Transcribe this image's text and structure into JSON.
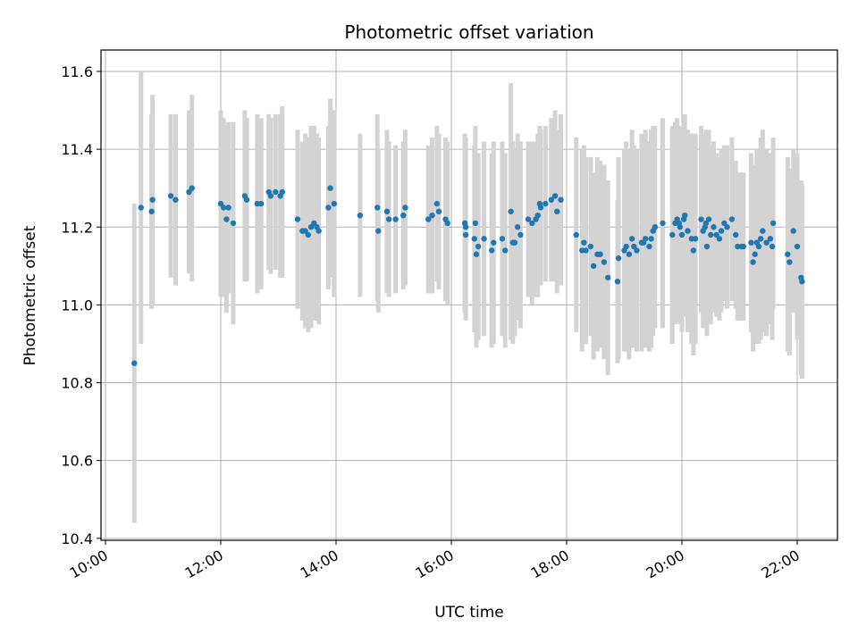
{
  "chart_data": {
    "type": "scatter",
    "title": "Photometric offset variation",
    "xlabel": "UTC time",
    "ylabel": "Photometric offset",
    "grid": true,
    "xlim": [
      "10:00",
      "22:40"
    ],
    "ylim": [
      10.395,
      11.655
    ],
    "x_ticks": [
      "10:00",
      "12:00",
      "14:00",
      "16:00",
      "18:00",
      "20:00",
      "22:00"
    ],
    "y_ticks": [
      "10.4",
      "10.6",
      "10.8",
      "11.0",
      "11.2",
      "11.4",
      "11.6"
    ],
    "colors": {
      "point": "#1f77b4",
      "errorbar": "#d3d3d3",
      "grid": "#b0b0b0"
    },
    "series": [
      {
        "points": [
          {
            "t": "10:30",
            "y": 10.85,
            "err": 0.41
          },
          {
            "t": "10:37",
            "y": 11.25,
            "err": 0.35
          },
          {
            "t": "10:48",
            "y": 11.24,
            "err": 0.25
          },
          {
            "t": "10:49",
            "y": 11.27,
            "err": 0.27
          },
          {
            "t": "11:08",
            "y": 11.28,
            "err": 0.21
          },
          {
            "t": "11:13",
            "y": 11.27,
            "err": 0.22
          },
          {
            "t": "11:27",
            "y": 11.29,
            "err": 0.21
          },
          {
            "t": "11:30",
            "y": 11.3,
            "err": 0.24
          },
          {
            "t": "12:00",
            "y": 11.26,
            "err": 0.24
          },
          {
            "t": "12:03",
            "y": 11.25,
            "err": 0.23
          },
          {
            "t": "12:06",
            "y": 11.22,
            "err": 0.24
          },
          {
            "t": "12:08",
            "y": 11.25,
            "err": 0.22
          },
          {
            "t": "12:13",
            "y": 11.21,
            "err": 0.26
          },
          {
            "t": "12:25",
            "y": 11.28,
            "err": 0.22
          },
          {
            "t": "12:27",
            "y": 11.27,
            "err": 0.21
          },
          {
            "t": "12:38",
            "y": 11.26,
            "err": 0.23
          },
          {
            "t": "12:42",
            "y": 11.26,
            "err": 0.22
          },
          {
            "t": "12:50",
            "y": 11.29,
            "err": 0.2
          },
          {
            "t": "12:52",
            "y": 11.28,
            "err": 0.2
          },
          {
            "t": "12:57",
            "y": 11.29,
            "err": 0.2
          },
          {
            "t": "13:02",
            "y": 11.28,
            "err": 0.21
          },
          {
            "t": "13:04",
            "y": 11.29,
            "err": 0.22
          },
          {
            "t": "13:20",
            "y": 11.22,
            "err": 0.23
          },
          {
            "t": "13:25",
            "y": 11.19,
            "err": 0.23
          },
          {
            "t": "13:28",
            "y": 11.19,
            "err": 0.25
          },
          {
            "t": "13:31",
            "y": 11.18,
            "err": 0.25
          },
          {
            "t": "13:34",
            "y": 11.2,
            "err": 0.26
          },
          {
            "t": "13:37",
            "y": 11.21,
            "err": 0.25
          },
          {
            "t": "13:40",
            "y": 11.2,
            "err": 0.24
          },
          {
            "t": "13:42",
            "y": 11.19,
            "err": 0.24
          },
          {
            "t": "13:52",
            "y": 11.25,
            "err": 0.21
          },
          {
            "t": "13:54",
            "y": 11.3,
            "err": 0.23
          },
          {
            "t": "13:58",
            "y": 11.26,
            "err": 0.24
          },
          {
            "t": "14:25",
            "y": 11.23,
            "err": 0.21
          },
          {
            "t": "14:43",
            "y": 11.25,
            "err": 0.24
          },
          {
            "t": "14:44",
            "y": 11.19,
            "err": 0.21
          },
          {
            "t": "14:53",
            "y": 11.24,
            "err": 0.21
          },
          {
            "t": "14:55",
            "y": 11.22,
            "err": 0.2
          },
          {
            "t": "15:02",
            "y": 11.22,
            "err": 0.19
          },
          {
            "t": "15:10",
            "y": 11.23,
            "err": 0.19
          },
          {
            "t": "15:12",
            "y": 11.25,
            "err": 0.2
          },
          {
            "t": "15:36",
            "y": 11.22,
            "err": 0.19
          },
          {
            "t": "15:40",
            "y": 11.23,
            "err": 0.2
          },
          {
            "t": "15:45",
            "y": 11.26,
            "err": 0.2
          },
          {
            "t": "15:47",
            "y": 11.24,
            "err": 0.2
          },
          {
            "t": "15:54",
            "y": 11.22,
            "err": 0.21
          },
          {
            "t": "15:56",
            "y": 11.21,
            "err": 0.21
          },
          {
            "t": "16:14",
            "y": 11.21,
            "err": 0.23
          },
          {
            "t": "16:15",
            "y": 11.2,
            "err": 0.23
          },
          {
            "t": "16:15",
            "y": 11.18,
            "err": 0.22
          },
          {
            "t": "16:24",
            "y": 11.17,
            "err": 0.24
          },
          {
            "t": "16:25",
            "y": 11.21,
            "err": 0.25
          },
          {
            "t": "16:26",
            "y": 11.13,
            "err": 0.24
          },
          {
            "t": "16:28",
            "y": 11.15,
            "err": 0.24
          },
          {
            "t": "16:34",
            "y": 11.17,
            "err": 0.25
          },
          {
            "t": "16:42",
            "y": 11.14,
            "err": 0.25
          },
          {
            "t": "16:44",
            "y": 11.16,
            "err": 0.26
          },
          {
            "t": "16:53",
            "y": 11.17,
            "err": 0.25
          },
          {
            "t": "16:56",
            "y": 11.14,
            "err": 0.25
          },
          {
            "t": "17:02",
            "y": 11.24,
            "err": 0.33
          },
          {
            "t": "17:04",
            "y": 11.16,
            "err": 0.26
          },
          {
            "t": "17:06",
            "y": 11.16,
            "err": 0.24
          },
          {
            "t": "17:09",
            "y": 11.2,
            "err": 0.24
          },
          {
            "t": "17:12",
            "y": 11.18,
            "err": 0.24
          },
          {
            "t": "17:20",
            "y": 11.22,
            "err": 0.2
          },
          {
            "t": "17:24",
            "y": 11.21,
            "err": 0.21
          },
          {
            "t": "17:28",
            "y": 11.22,
            "err": 0.2
          },
          {
            "t": "17:30",
            "y": 11.23,
            "err": 0.21
          },
          {
            "t": "17:32",
            "y": 11.26,
            "err": 0.2
          },
          {
            "t": "17:33",
            "y": 11.25,
            "err": 0.2
          },
          {
            "t": "17:38",
            "y": 11.26,
            "err": 0.2
          },
          {
            "t": "17:44",
            "y": 11.27,
            "err": 0.21
          },
          {
            "t": "17:48",
            "y": 11.28,
            "err": 0.22
          },
          {
            "t": "17:50",
            "y": 11.24,
            "err": 0.21
          },
          {
            "t": "17:54",
            "y": 11.27,
            "err": 0.22
          },
          {
            "t": "18:10",
            "y": 11.18,
            "err": 0.25
          },
          {
            "t": "18:16",
            "y": 11.14,
            "err": 0.26
          },
          {
            "t": "18:18",
            "y": 11.16,
            "err": 0.25
          },
          {
            "t": "18:20",
            "y": 11.14,
            "err": 0.24
          },
          {
            "t": "18:25",
            "y": 11.15,
            "err": 0.23
          },
          {
            "t": "18:28",
            "y": 11.1,
            "err": 0.24
          },
          {
            "t": "18:32",
            "y": 11.13,
            "err": 0.25
          },
          {
            "t": "18:35",
            "y": 11.13,
            "err": 0.24
          },
          {
            "t": "18:39",
            "y": 11.11,
            "err": 0.25
          },
          {
            "t": "18:43",
            "y": 11.07,
            "err": 0.25
          },
          {
            "t": "18:53",
            "y": 11.06,
            "err": 0.21
          },
          {
            "t": "18:54",
            "y": 11.12,
            "err": 0.26
          },
          {
            "t": "19:00",
            "y": 11.14,
            "err": 0.26
          },
          {
            "t": "19:02",
            "y": 11.15,
            "err": 0.27
          },
          {
            "t": "19:05",
            "y": 11.13,
            "err": 0.27
          },
          {
            "t": "19:08",
            "y": 11.17,
            "err": 0.28
          },
          {
            "t": "19:10",
            "y": 11.15,
            "err": 0.26
          },
          {
            "t": "19:13",
            "y": 11.14,
            "err": 0.26
          },
          {
            "t": "19:18",
            "y": 11.16,
            "err": 0.28
          },
          {
            "t": "19:20",
            "y": 11.16,
            "err": 0.27
          },
          {
            "t": "19:22",
            "y": 11.17,
            "err": 0.28
          },
          {
            "t": "19:26",
            "y": 11.15,
            "err": 0.27
          },
          {
            "t": "19:28",
            "y": 11.17,
            "err": 0.28
          },
          {
            "t": "19:30",
            "y": 11.19,
            "err": 0.27
          },
          {
            "t": "19:32",
            "y": 11.2,
            "err": 0.26
          },
          {
            "t": "19:40",
            "y": 11.21,
            "err": 0.27
          },
          {
            "t": "19:50",
            "y": 11.18,
            "err": 0.28
          },
          {
            "t": "19:53",
            "y": 11.21,
            "err": 0.26
          },
          {
            "t": "19:55",
            "y": 11.22,
            "err": 0.26
          },
          {
            "t": "19:57",
            "y": 11.21,
            "err": 0.25
          },
          {
            "t": "19:58",
            "y": 11.2,
            "err": 0.25
          },
          {
            "t": "20:00",
            "y": 11.18,
            "err": 0.25
          },
          {
            "t": "20:02",
            "y": 11.22,
            "err": 0.25
          },
          {
            "t": "20:03",
            "y": 11.23,
            "err": 0.26
          },
          {
            "t": "20:06",
            "y": 11.19,
            "err": 0.26
          },
          {
            "t": "20:10",
            "y": 11.17,
            "err": 0.27
          },
          {
            "t": "20:12",
            "y": 11.14,
            "err": 0.27
          },
          {
            "t": "20:14",
            "y": 11.17,
            "err": 0.27
          },
          {
            "t": "20:20",
            "y": 11.22,
            "err": 0.24
          },
          {
            "t": "20:22",
            "y": 11.19,
            "err": 0.25
          },
          {
            "t": "20:24",
            "y": 11.2,
            "err": 0.24
          },
          {
            "t": "20:25",
            "y": 11.21,
            "err": 0.24
          },
          {
            "t": "20:26",
            "y": 11.15,
            "err": 0.23
          },
          {
            "t": "20:28",
            "y": 11.22,
            "err": 0.23
          },
          {
            "t": "20:30",
            "y": 11.18,
            "err": 0.23
          },
          {
            "t": "20:33",
            "y": 11.2,
            "err": 0.22
          },
          {
            "t": "20:36",
            "y": 11.18,
            "err": 0.21
          },
          {
            "t": "20:39",
            "y": 11.17,
            "err": 0.21
          },
          {
            "t": "20:41",
            "y": 11.19,
            "err": 0.21
          },
          {
            "t": "20:44",
            "y": 11.21,
            "err": 0.2
          },
          {
            "t": "20:47",
            "y": 11.2,
            "err": 0.21
          },
          {
            "t": "20:52",
            "y": 11.22,
            "err": 0.21
          },
          {
            "t": "20:56",
            "y": 11.18,
            "err": 0.19
          },
          {
            "t": "20:58",
            "y": 11.15,
            "err": 0.19
          },
          {
            "t": "21:02",
            "y": 11.15,
            "err": 0.19
          },
          {
            "t": "21:04",
            "y": 11.15,
            "err": 0.19
          },
          {
            "t": "21:12",
            "y": 11.16,
            "err": 0.23
          },
          {
            "t": "21:14",
            "y": 11.11,
            "err": 0.23
          },
          {
            "t": "21:16",
            "y": 11.13,
            "err": 0.23
          },
          {
            "t": "21:18",
            "y": 11.16,
            "err": 0.24
          },
          {
            "t": "21:20",
            "y": 11.15,
            "err": 0.25
          },
          {
            "t": "21:22",
            "y": 11.17,
            "err": 0.26
          },
          {
            "t": "21:24",
            "y": 11.19,
            "err": 0.26
          },
          {
            "t": "21:28",
            "y": 11.16,
            "err": 0.24
          },
          {
            "t": "21:32",
            "y": 11.17,
            "err": 0.22
          },
          {
            "t": "21:34",
            "y": 11.15,
            "err": 0.24
          },
          {
            "t": "21:35",
            "y": 11.21,
            "err": 0.22
          },
          {
            "t": "21:50",
            "y": 11.13,
            "err": 0.25
          },
          {
            "t": "21:52",
            "y": 11.11,
            "err": 0.24
          },
          {
            "t": "21:56",
            "y": 11.19,
            "err": 0.21
          },
          {
            "t": "22:00",
            "y": 11.15,
            "err": 0.24
          },
          {
            "t": "22:04",
            "y": 11.07,
            "err": 0.25
          },
          {
            "t": "22:05",
            "y": 11.06,
            "err": 0.25
          }
        ]
      }
    ]
  }
}
